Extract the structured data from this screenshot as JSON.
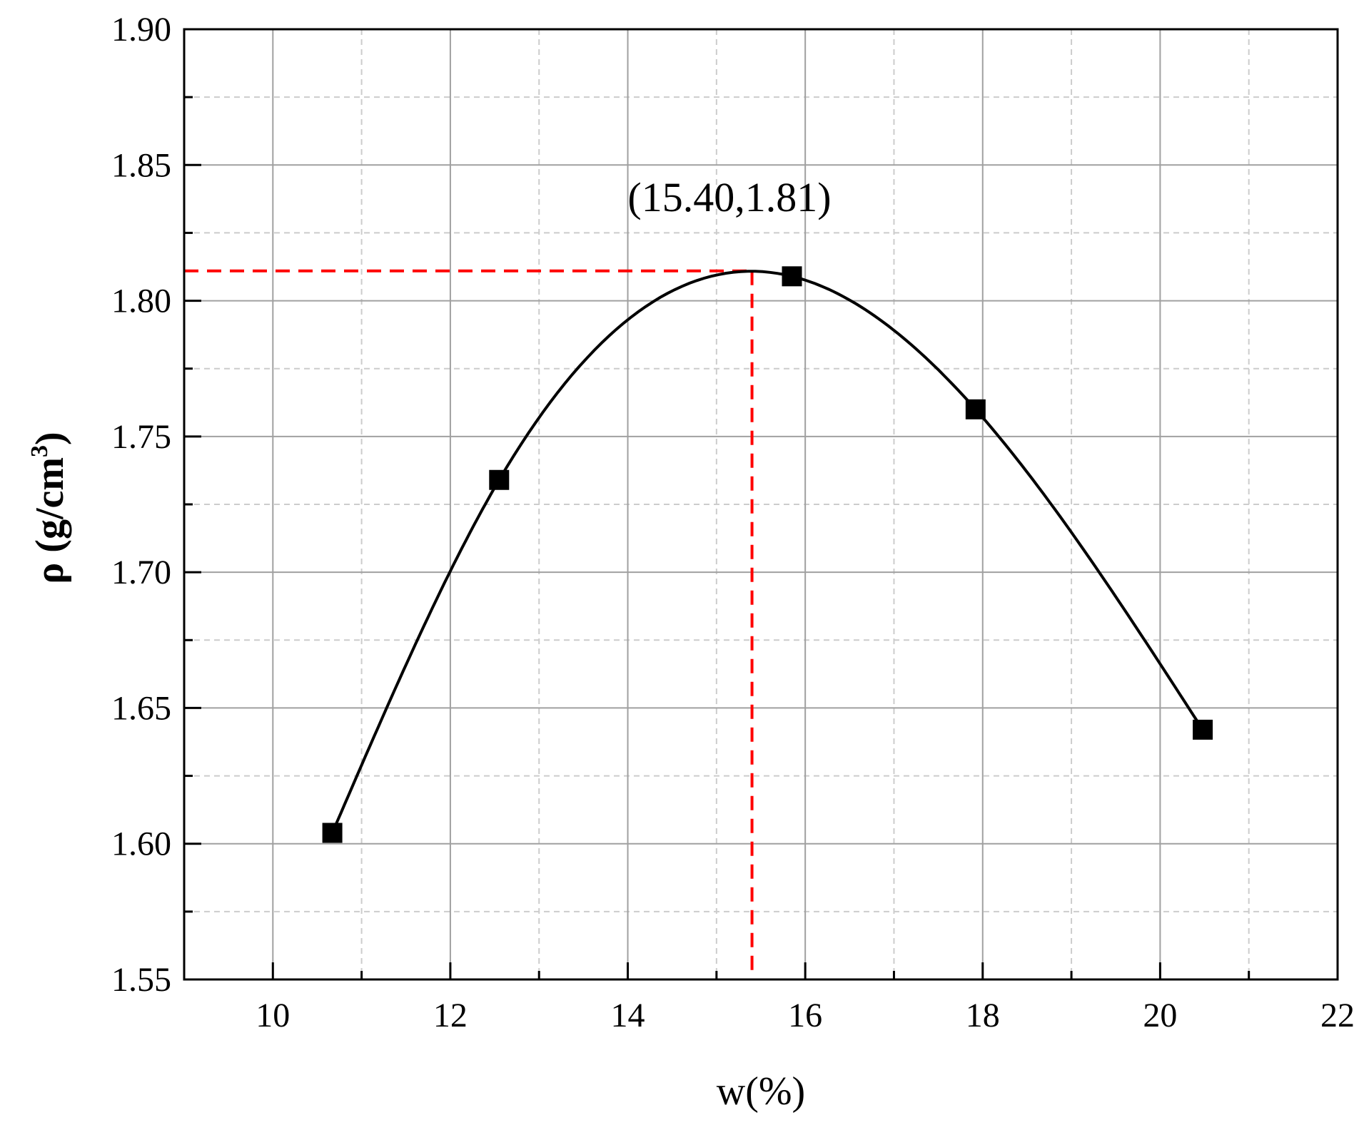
{
  "chart_data": {
    "type": "line",
    "xlabel": "w(%)",
    "ylabel": {
      "main": "ρ (g/cm",
      "sup": "3",
      "close": ")"
    },
    "xlim": [
      9,
      22
    ],
    "ylim": [
      1.55,
      1.9
    ],
    "x_ticks": [
      10,
      12,
      14,
      16,
      18,
      20,
      22
    ],
    "y_ticks": [
      1.55,
      1.6,
      1.65,
      1.7,
      1.75,
      1.8,
      1.85,
      1.9
    ],
    "x_tick_labels": [
      "10",
      "12",
      "14",
      "16",
      "18",
      "20",
      "22"
    ],
    "y_tick_labels": [
      "1.55",
      "1.60",
      "1.65",
      "1.70",
      "1.75",
      "1.80",
      "1.85",
      "1.90"
    ],
    "grid": true,
    "series": [
      {
        "x": [
          10.67,
          12.55,
          15.85,
          17.92,
          20.48
        ],
        "y": [
          1.604,
          1.734,
          1.809,
          1.76,
          1.642
        ],
        "marker": "square",
        "color": "#000000"
      }
    ],
    "annotation": {
      "text": "(15.40,1.81)",
      "x": 15.4,
      "y": 1.811,
      "color": "#ff0000"
    }
  }
}
